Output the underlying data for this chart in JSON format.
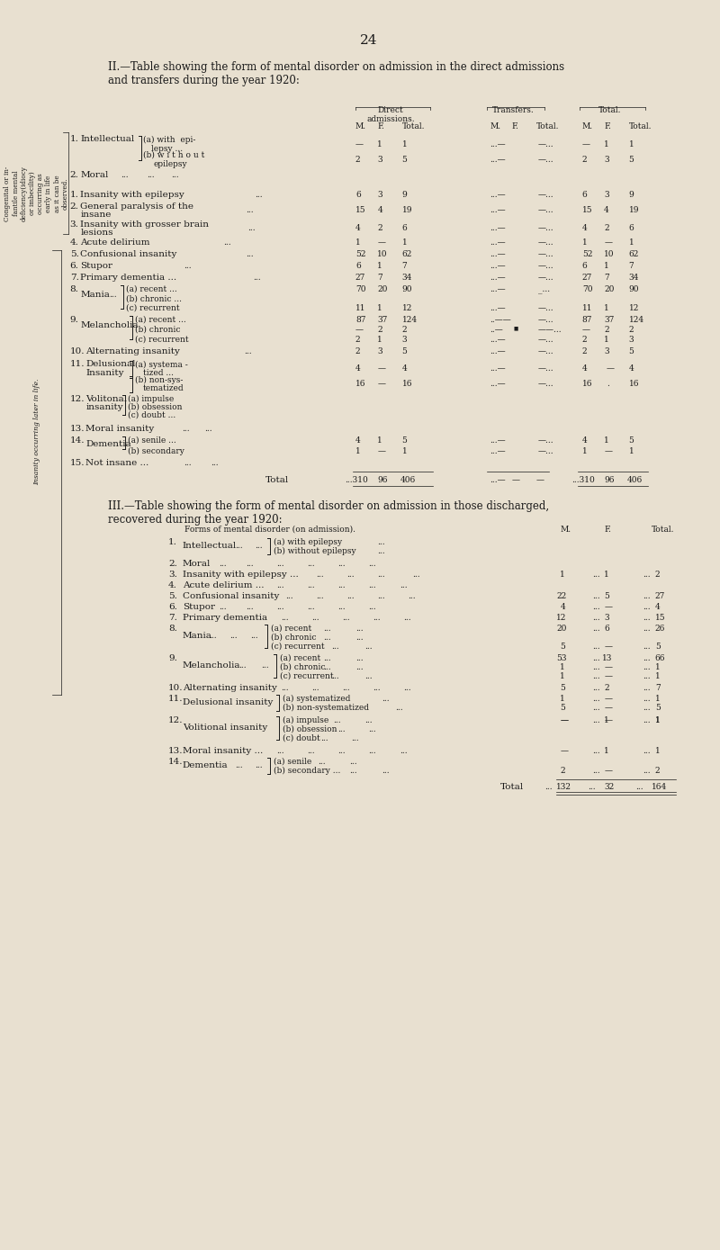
{
  "bg_color": "#e8e0d0",
  "text_color": "#1a1a1a",
  "page_num": "24",
  "title2": "II.—Table showing the form of mental disorder on admission in the direct admissions\nand transfers during the year 1920:",
  "title3": "III.—Table showing the form of mental disorder on admission in those discharged,\nrecovered during the year 1920:",
  "side_label_congenital": "Congenital or in-\nfantile mental\ndeficiency(idiocy\nor imbecility)\noccurring as\nearly in life\nas it can be\nobserved.",
  "side_label_insanity": "Insanity occurring later in life."
}
